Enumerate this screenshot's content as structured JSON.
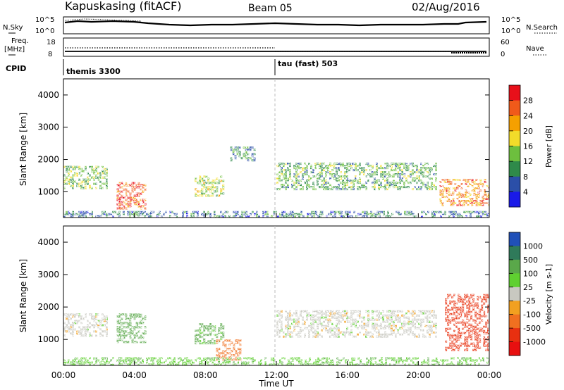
{
  "header": {
    "station": "Kapuskasing (fitACF)",
    "beam": "Beam 05",
    "date": "02/Aug/2016"
  },
  "noise_panel": {
    "left_label": "N.Sky",
    "right_label": "N.Search",
    "left_ticks": [
      "10^5",
      "10^0"
    ],
    "right_ticks": [
      "10^5",
      "10^0"
    ]
  },
  "freq_panel": {
    "left_label_1": "Freq.",
    "left_label_2": "[MHz]",
    "right_label": "Nave",
    "left_ticks": [
      "18",
      "8"
    ],
    "right_ticks": [
      "60",
      "0"
    ]
  },
  "cpid_panel": {
    "label": "CPID",
    "modes": [
      "themis 3300",
      "tau (fast) 503"
    ]
  },
  "time_axis": {
    "label": "Time UT",
    "ticks": [
      "00:00",
      "04:00",
      "08:00",
      "12:00",
      "16:00",
      "20:00",
      "00:00"
    ]
  },
  "chart_data": [
    {
      "type": "heatmap",
      "title": "Power",
      "ylabel": "Slant Range [km]",
      "ylim": [
        200,
        4500
      ],
      "yticks": [
        1000,
        2000,
        3000,
        4000
      ],
      "xlabel": "Time UT",
      "xlim": [
        "00:00",
        "24:00"
      ],
      "colorbar": {
        "label": "Power [dB]",
        "ticks": [
          "28",
          "24",
          "20",
          "16",
          "12",
          "8",
          "4"
        ],
        "colors": [
          "#e8101a",
          "#f05a1a",
          "#f5a000",
          "#f2dc2a",
          "#6dbf3e",
          "#2f8a4a",
          "#2b4fa8",
          "#1a1ae8"
        ]
      },
      "echo_regions": [
        {
          "t0": 0.0,
          "t1": 2.4,
          "r0": 1100,
          "r1": 1800,
          "level_db": 14
        },
        {
          "t0": 3.0,
          "t1": 4.6,
          "r0": 500,
          "r1": 1300,
          "level_db": 26
        },
        {
          "t0": 7.4,
          "t1": 9.0,
          "r0": 900,
          "r1": 1500,
          "level_db": 16
        },
        {
          "t0": 9.4,
          "t1": 10.8,
          "r0": 2000,
          "r1": 2400,
          "level_db": 10
        },
        {
          "t0": 12.0,
          "t1": 21.0,
          "r0": 1100,
          "r1": 1900,
          "level_db": 12
        },
        {
          "t0": 21.2,
          "t1": 24.0,
          "r0": 600,
          "r1": 1400,
          "level_db": 24
        },
        {
          "t0": 0.0,
          "t1": 24.0,
          "r0": 200,
          "r1": 400,
          "level_db": 8
        }
      ]
    },
    {
      "type": "heatmap",
      "title": "Velocity",
      "ylabel": "Slant Range [km]",
      "ylim": [
        200,
        4500
      ],
      "yticks": [
        1000,
        2000,
        3000,
        4000
      ],
      "xlabel": "Time UT",
      "xlim": [
        "00:00",
        "24:00"
      ],
      "colorbar": {
        "label": "Velocity [m s-1]",
        "ticks": [
          "1000",
          "500",
          "100",
          "25",
          "-25",
          "-100",
          "-500",
          "-1000"
        ],
        "colors": [
          "#2050b8",
          "#2f7a5a",
          "#5aa84a",
          "#5fd030",
          "#c8c8c0",
          "#f2a020",
          "#f07020",
          "#e83010",
          "#e81010"
        ]
      },
      "echo_regions": [
        {
          "t0": 0.0,
          "t1": 2.4,
          "r0": 1100,
          "r1": 1800,
          "velocity_ms": 0
        },
        {
          "t0": 3.0,
          "t1": 4.6,
          "r0": 900,
          "r1": 1800,
          "velocity_ms": 150
        },
        {
          "t0": 7.4,
          "t1": 9.0,
          "r0": 900,
          "r1": 1500,
          "velocity_ms": 120
        },
        {
          "t0": 8.6,
          "t1": 10.0,
          "r0": 400,
          "r1": 1000,
          "velocity_ms": -150
        },
        {
          "t0": 12.0,
          "t1": 21.0,
          "r0": 1100,
          "r1": 1900,
          "velocity_ms": 0
        },
        {
          "t0": 21.5,
          "t1": 24.0,
          "r0": 700,
          "r1": 2400,
          "velocity_ms": -700
        },
        {
          "t0": 0.0,
          "t1": 24.0,
          "r0": 200,
          "r1": 450,
          "velocity_ms": 80
        }
      ]
    }
  ]
}
